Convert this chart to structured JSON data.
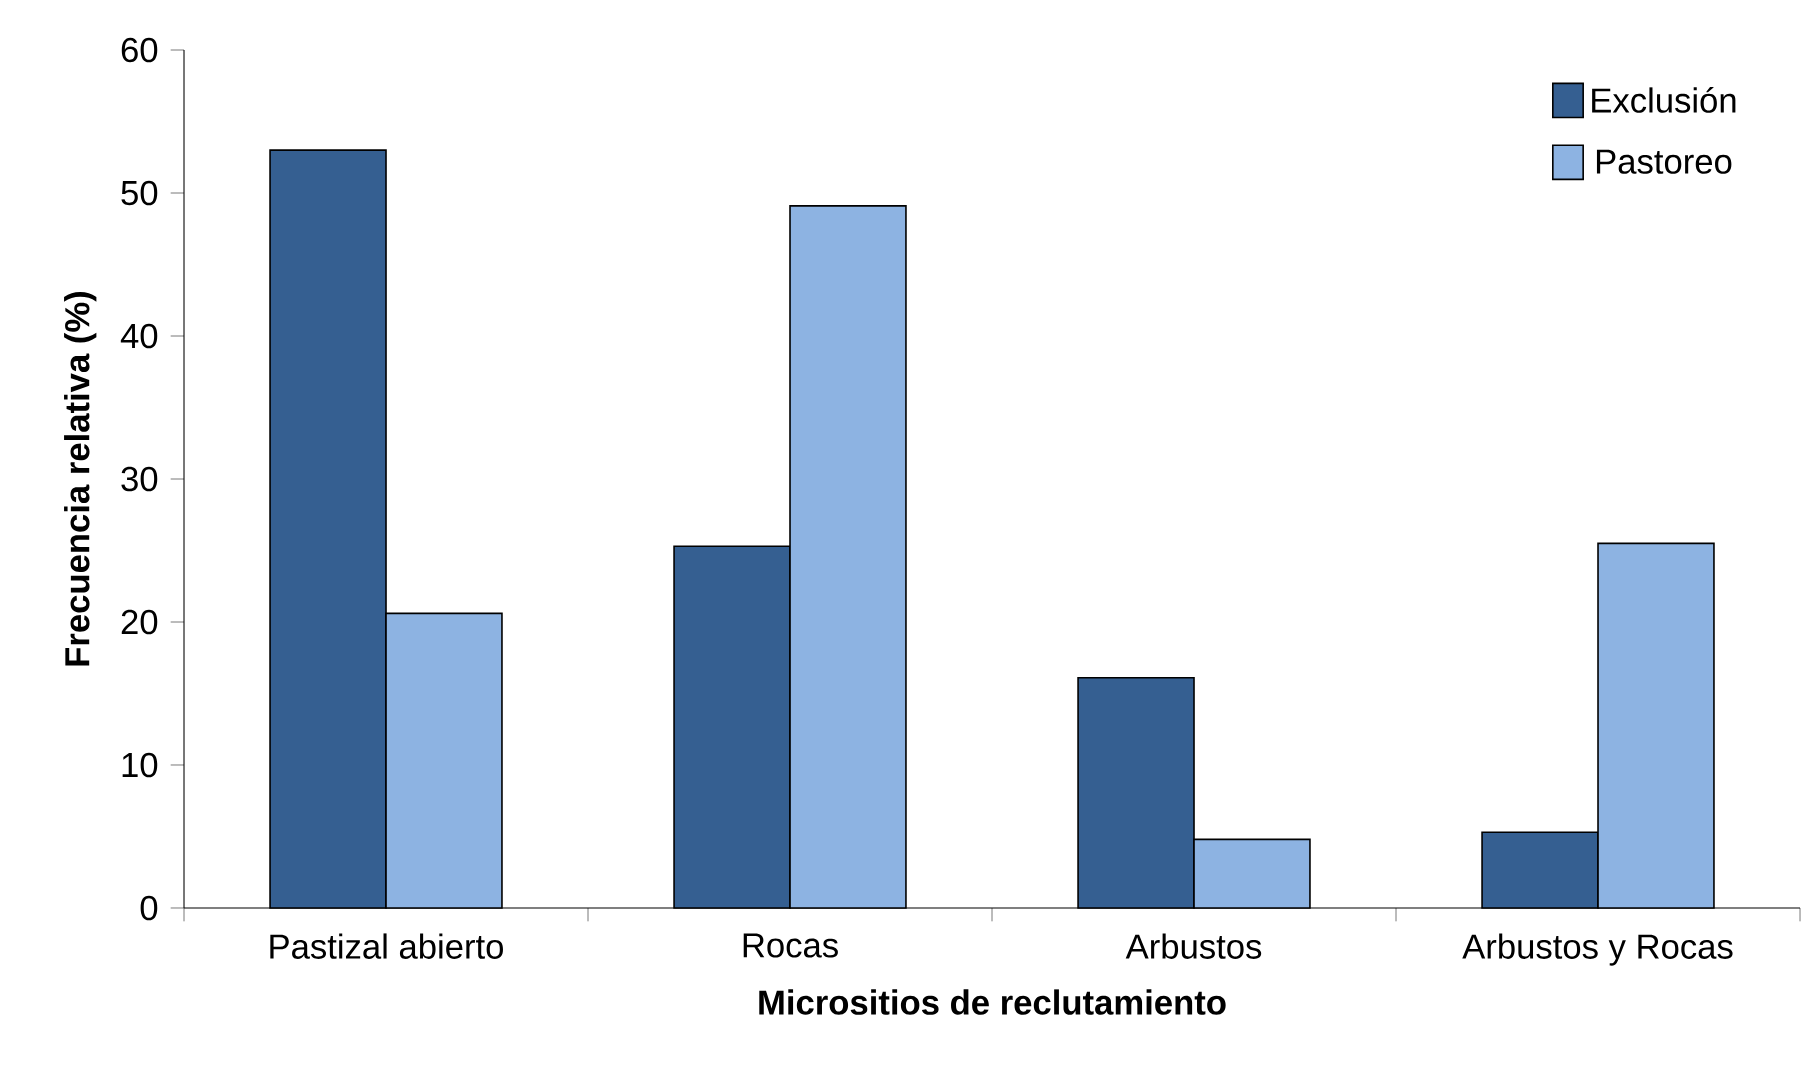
{
  "chart_data": {
    "type": "bar",
    "xlabel": "Micrositios de reclutamiento",
    "ylabel": "Frecuencia relativa (%)",
    "categories": [
      "Pastizal abierto",
      "Rocas",
      "Arbustos",
      "Arbustos y Rocas"
    ],
    "series": [
      {
        "name": "Exclusión",
        "color": "#355f91",
        "values": [
          53.0,
          25.3,
          16.1,
          5.3
        ]
      },
      {
        "name": "Pastoreo",
        "color": "#8db3e2",
        "values": [
          20.6,
          49.1,
          4.8,
          25.5
        ]
      }
    ],
    "ylim": [
      0,
      60
    ],
    "yticks": [
      0,
      10,
      20,
      30,
      40,
      50,
      60
    ],
    "legend": "top right"
  }
}
